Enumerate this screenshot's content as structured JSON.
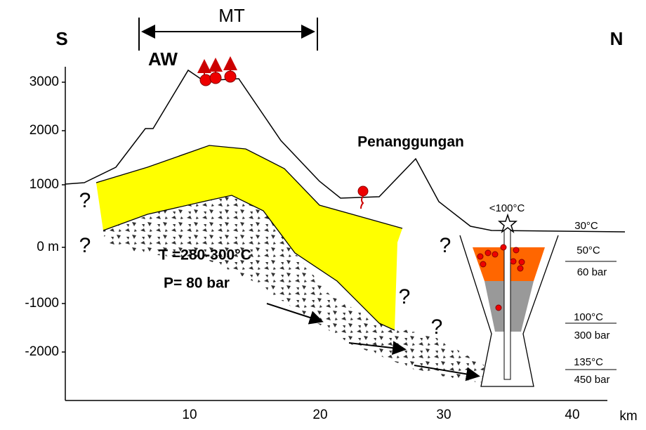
{
  "labels": {
    "south": "S",
    "north": "N",
    "mt": "MT",
    "aw": "AW",
    "penanggungan": "Penanggungan",
    "temperature": "T =280-300°C",
    "pressure": "P= 80 bar",
    "surface_temp": "<100°C"
  },
  "axis": {
    "y_ticks": [
      "3000",
      "2000",
      "1000",
      "0 m",
      "-1000",
      "-2000"
    ],
    "x_ticks": [
      "10",
      "20",
      "30",
      "40"
    ],
    "x_unit": "km"
  },
  "question_marks": [
    "?",
    "?",
    "?",
    "?",
    "?"
  ],
  "column_labels": [
    {
      "temp": "30°C"
    },
    {
      "temp": "50°C",
      "pressure": "60 bar"
    },
    {
      "temp": "100°C",
      "pressure": "300 bar"
    },
    {
      "temp": "135°C",
      "pressure": "450 bar"
    }
  ]
}
